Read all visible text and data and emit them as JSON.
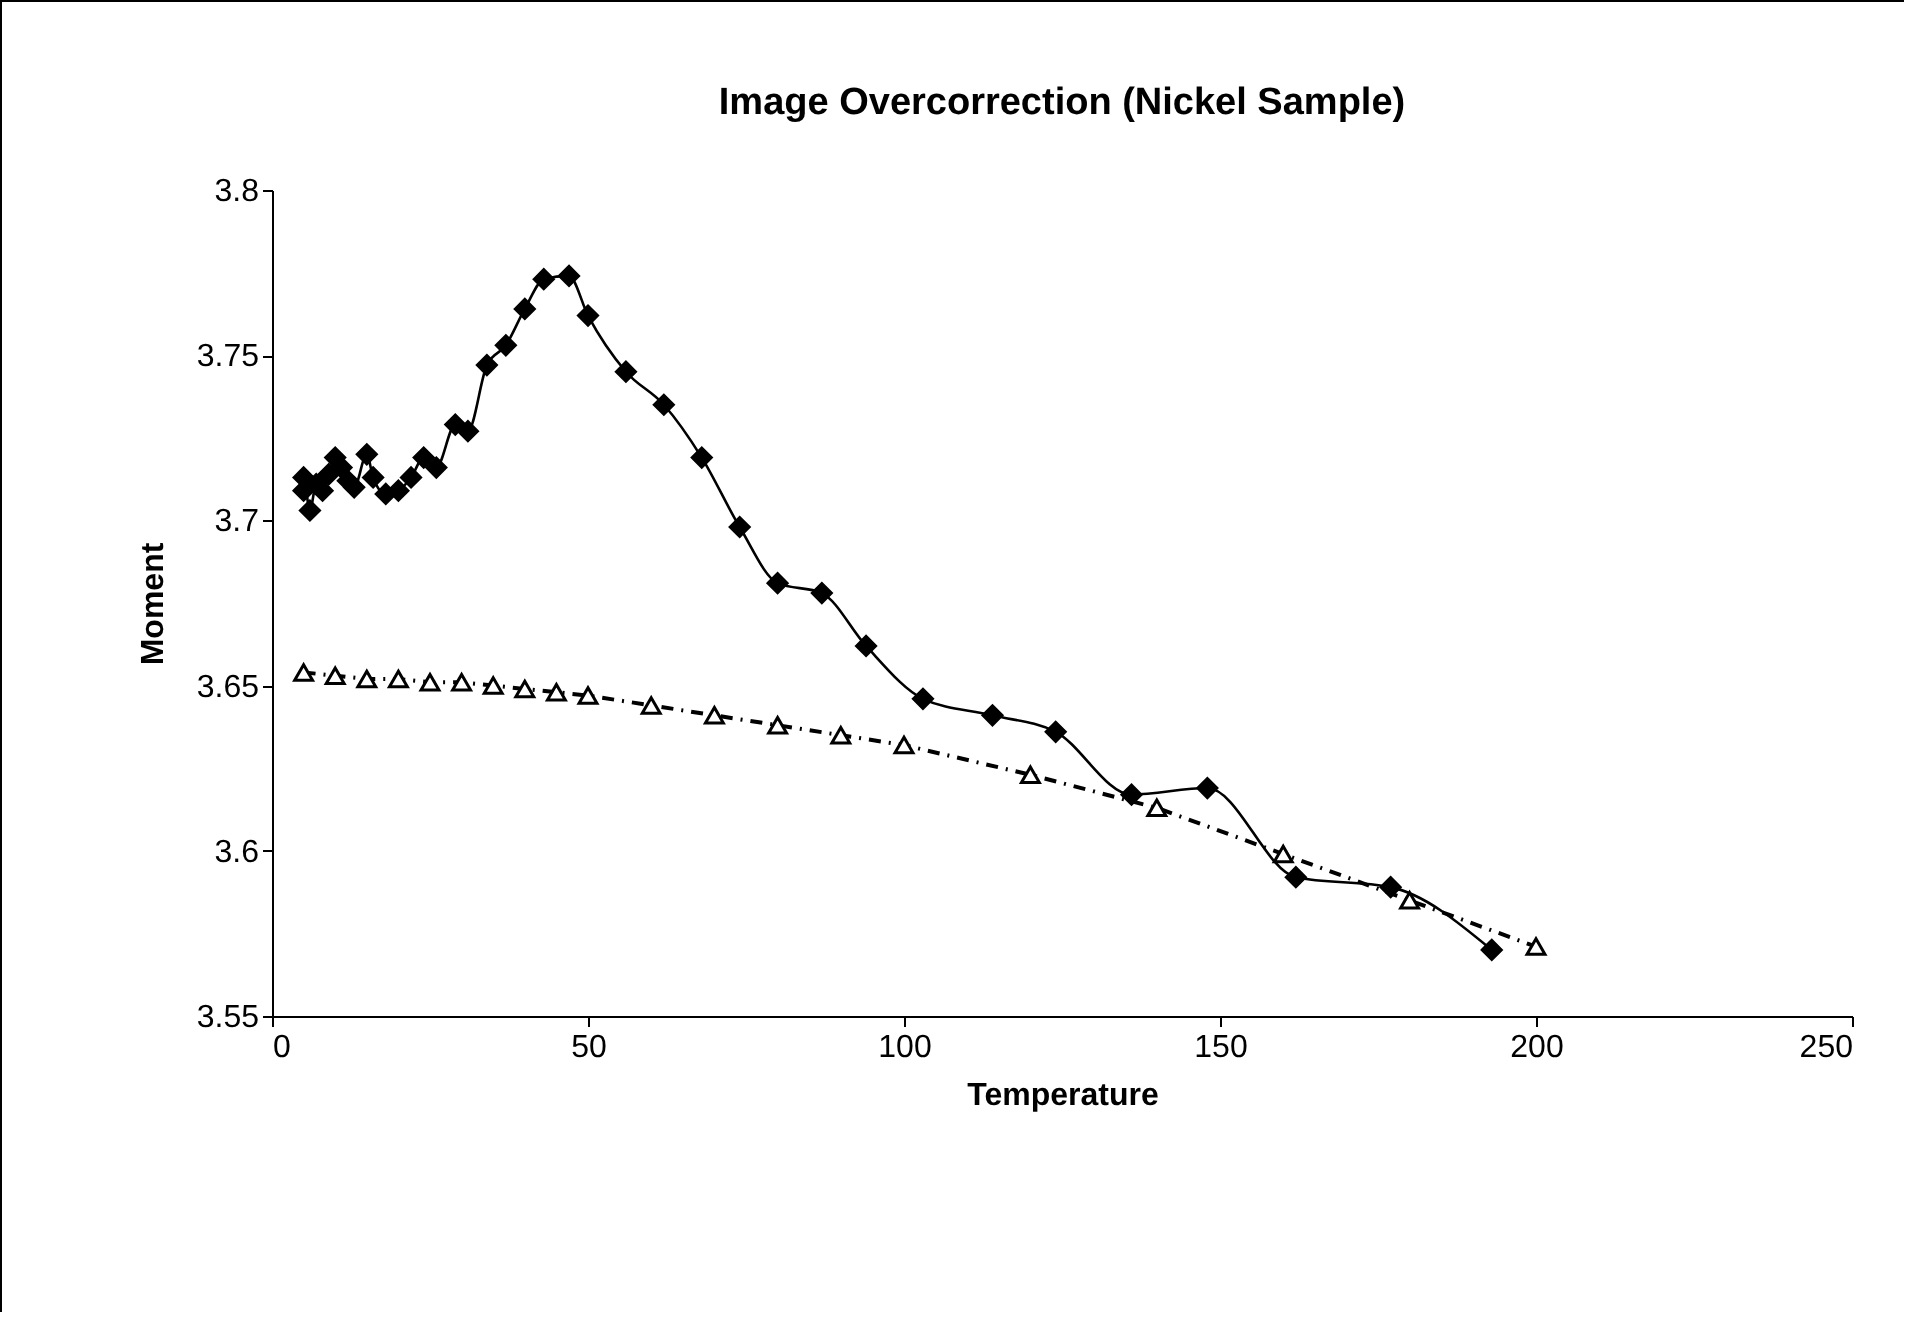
{
  "chart_data": {
    "type": "line",
    "title": "Image Overcorrection (Nickel Sample)",
    "xlabel": "Temperature",
    "ylabel": "Moment",
    "xlim": [
      0,
      250
    ],
    "xticks": [
      0,
      50,
      100,
      150,
      200,
      250
    ],
    "ylim": [
      3.55,
      3.8
    ],
    "yticks": [
      3.55,
      3.6,
      3.65,
      3.7,
      3.75,
      3.8
    ],
    "grid": false,
    "series": [
      {
        "color": "#000000",
        "marker": "diamond",
        "line_style": "solid",
        "x": [
          5,
          5,
          6,
          7,
          8,
          9,
          10,
          11,
          12,
          13,
          15,
          16,
          18,
          20,
          22,
          24,
          26,
          29,
          31,
          34,
          37,
          40,
          43,
          47,
          50,
          56,
          62,
          68,
          74,
          80,
          87,
          94,
          103,
          114,
          124,
          136,
          148,
          162,
          177,
          193
        ],
        "values": [
          3.709,
          3.713,
          3.703,
          3.711,
          3.709,
          3.714,
          3.719,
          3.716,
          3.712,
          3.71,
          3.72,
          3.713,
          3.708,
          3.709,
          3.713,
          3.719,
          3.716,
          3.729,
          3.727,
          3.747,
          3.753,
          3.764,
          3.773,
          3.774,
          3.762,
          3.745,
          3.735,
          3.719,
          3.698,
          3.681,
          3.678,
          3.662,
          3.646,
          3.641,
          3.636,
          3.617,
          3.619,
          3.592,
          3.589,
          3.57
        ]
      },
      {
        "color": "#000000",
        "marker": "triangle",
        "line_style": "dashed",
        "x": [
          5,
          10,
          15,
          20,
          25,
          30,
          35,
          40,
          45,
          50,
          60,
          70,
          80,
          90,
          100,
          120,
          140,
          160,
          180,
          200
        ],
        "values": [
          3.654,
          3.653,
          3.652,
          3.652,
          3.651,
          3.651,
          3.65,
          3.649,
          3.648,
          3.647,
          3.644,
          3.641,
          3.638,
          3.635,
          3.632,
          3.623,
          3.613,
          3.599,
          3.585,
          3.571
        ]
      }
    ]
  }
}
